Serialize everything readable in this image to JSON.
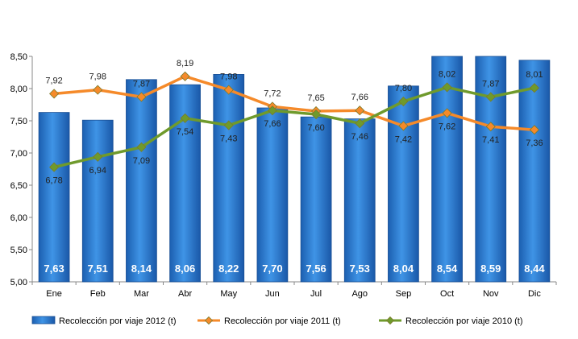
{
  "chart_data": {
    "type": "bar",
    "categories": [
      "Ene",
      "Feb",
      "Mar",
      "Abr",
      "May",
      "Jun",
      "Jul",
      "Ago",
      "Sep",
      "Oct",
      "Nov",
      "Dic"
    ],
    "ylim": [
      5.0,
      8.5
    ],
    "yticks": [
      "5,00",
      "5,50",
      "6,00",
      "6,50",
      "7,00",
      "7,50",
      "8,00",
      "8,50"
    ],
    "grid": false,
    "legend_position": "bottom",
    "series": [
      {
        "name": "Recolección por viaje 2012 (t)",
        "kind": "bar",
        "color": "#2f7fd4",
        "values": [
          7.63,
          7.51,
          8.14,
          8.06,
          8.22,
          7.7,
          7.56,
          7.53,
          8.04,
          8.54,
          8.59,
          8.44
        ],
        "labels": [
          "7,63",
          "7,51",
          "8,14",
          "8,06",
          "8,22",
          "7,70",
          "7,56",
          "7,53",
          "8,04",
          "8,54",
          "8,59",
          "8,44"
        ]
      },
      {
        "name": "Recolección por viaje 2011 (t)",
        "kind": "line",
        "color": "#f58a2a",
        "values": [
          7.92,
          7.98,
          7.87,
          8.19,
          7.98,
          7.72,
          7.65,
          7.66,
          7.42,
          7.62,
          7.41,
          7.36
        ],
        "labels": [
          "7,92",
          "7,98",
          "7,87",
          "8,19",
          "7,98",
          "7,72",
          "7,65",
          "7,66",
          "7,42",
          "7,62",
          "7,41",
          "7,36"
        ]
      },
      {
        "name": "Recolección por viaje 2010 (t)",
        "kind": "line",
        "color": "#6f9a2c",
        "values": [
          6.78,
          6.94,
          7.09,
          7.54,
          7.43,
          7.66,
          7.6,
          7.46,
          7.8,
          8.02,
          7.87,
          8.01
        ],
        "labels": [
          "6,78",
          "6,94",
          "7,09",
          "7,54",
          "7,43",
          "7,66",
          "7,60",
          "7,46",
          "7,80",
          "8,02",
          "7,87",
          "8,01"
        ]
      }
    ]
  }
}
